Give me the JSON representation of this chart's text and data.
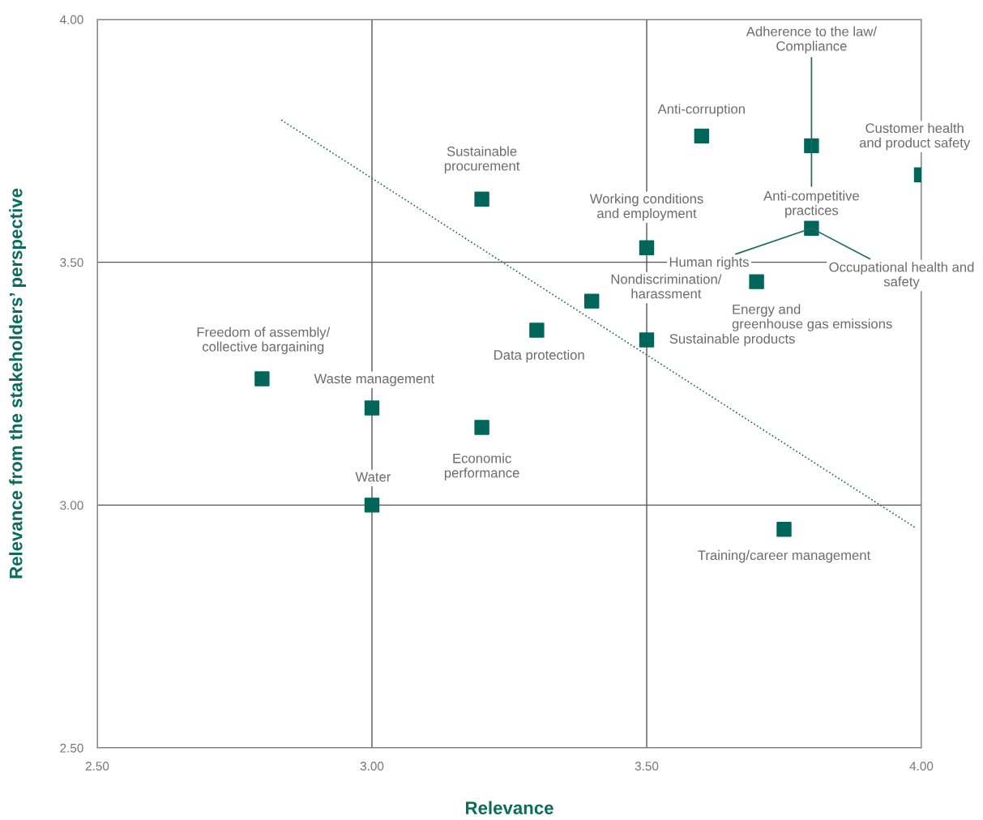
{
  "chart_data": {
    "type": "scatter",
    "xlabel": "Relevance",
    "ylabel": "Relevance from the stakeholders’ perspective",
    "xlim": [
      2.5,
      4.0
    ],
    "ylim": [
      2.5,
      4.0
    ],
    "xticks": [
      {
        "value": 2.5,
        "label": "2.50"
      },
      {
        "value": 3.0,
        "label": "3.00"
      },
      {
        "value": 3.5,
        "label": "3.50"
      },
      {
        "value": 4.0,
        "label": "4.00"
      }
    ],
    "yticks": [
      {
        "value": 2.5,
        "label": "2.50"
      },
      {
        "value": 3.0,
        "label": "3.00"
      },
      {
        "value": 3.5,
        "label": "3.50"
      },
      {
        "value": 4.0,
        "label": "4.00"
      }
    ],
    "grid": true,
    "series": [
      {
        "marker": "square",
        "color": "#00665a",
        "x": [
          3.6,
          3.8,
          4.0,
          3.2,
          3.8,
          3.5,
          3.7,
          3.4,
          3.3,
          3.5,
          2.8,
          3.0,
          3.2,
          3.0,
          3.75
        ],
        "values": [
          3.76,
          3.74,
          3.68,
          3.63,
          3.57,
          3.53,
          3.46,
          3.42,
          3.36,
          3.34,
          3.26,
          3.2,
          3.16,
          3.0,
          2.95
        ]
      },
      {
        "type": "line",
        "color": "#1e6b5c",
        "line_style": "dotted",
        "x": [
          2.835,
          3.991
        ],
        "values": [
          3.793,
          2.952
        ]
      }
    ],
    "annotations": [
      {
        "text": "Anti-corruption",
        "x": 3.6,
        "y": 3.76
      },
      {
        "text": "Adherence to the law/\nCompliance",
        "x": 3.8,
        "y": 3.74
      },
      {
        "text": "Anti-competitive\npractices",
        "x": 3.8,
        "y": 3.74
      },
      {
        "text": "Customer health\nand product safety",
        "x": 4.0,
        "y": 3.68
      },
      {
        "text": "Sustainable\nprocurement",
        "x": 3.2,
        "y": 3.63
      },
      {
        "text": "Human rights",
        "x": 3.8,
        "y": 3.57
      },
      {
        "text": "Occupational health and\nsafety",
        "x": 3.8,
        "y": 3.57
      },
      {
        "text": "Working conditions\nand employment",
        "x": 3.5,
        "y": 3.53
      },
      {
        "text": "Energy and\ngreenhouse gas emissions",
        "x": 3.7,
        "y": 3.46
      },
      {
        "text": "Nondiscrimination/\nharassment",
        "x": 3.4,
        "y": 3.42
      },
      {
        "text": "Data protection",
        "x": 3.3,
        "y": 3.36
      },
      {
        "text": "Sustainable products",
        "x": 3.5,
        "y": 3.34
      },
      {
        "text": "Freedom of assembly/\ncollective bargaining",
        "x": 2.8,
        "y": 3.26
      },
      {
        "text": "Waste management",
        "x": 3.0,
        "y": 3.2
      },
      {
        "text": "Economic\nperformance",
        "x": 3.2,
        "y": 3.16
      },
      {
        "text": "Water",
        "x": 3.0,
        "y": 3.0
      },
      {
        "text": "Training/career management",
        "x": 3.75,
        "y": 2.95
      }
    ]
  }
}
